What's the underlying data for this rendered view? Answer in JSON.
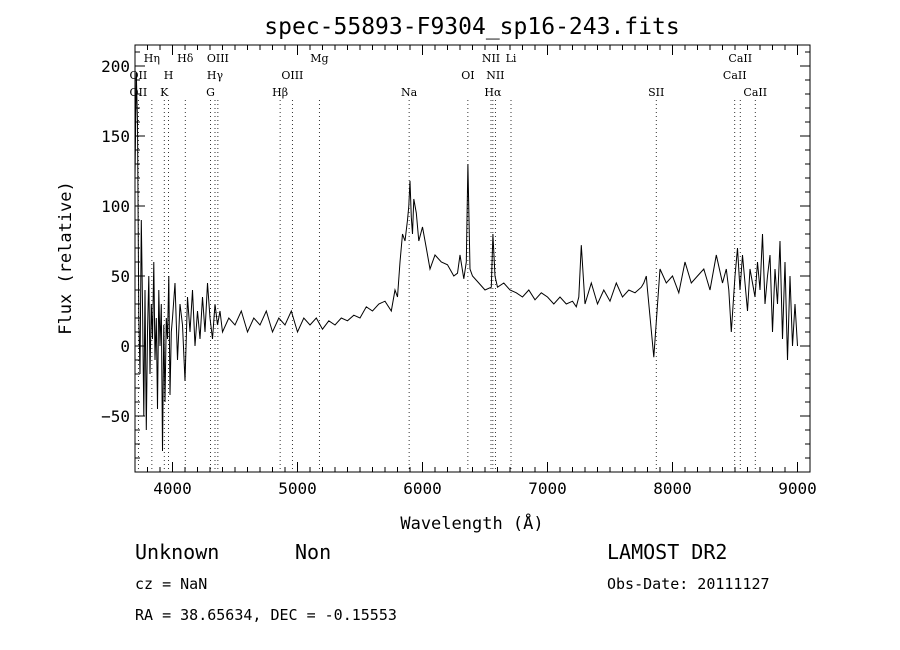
{
  "chart_data": {
    "type": "line",
    "title": "spec-55893-F9304_sp16-243.fits",
    "xlabel": "Wavelength (Å)",
    "ylabel": "Flux (relative)",
    "xlim": [
      3700,
      9100
    ],
    "ylim": [
      -90,
      215
    ],
    "xticks": [
      4000,
      5000,
      6000,
      7000,
      8000,
      9000
    ],
    "yticks": [
      -50,
      0,
      50,
      100,
      150,
      200
    ],
    "grid": false,
    "series": [
      {
        "x": [
          3700,
          3710,
          3720,
          3730,
          3740,
          3750,
          3760,
          3770,
          3780,
          3790,
          3800,
          3810,
          3820,
          3830,
          3840,
          3850,
          3860,
          3870,
          3880,
          3890,
          3900,
          3910,
          3920,
          3930,
          3940,
          3950,
          3960,
          3970,
          3980,
          3990,
          4000,
          4020,
          4040,
          4060,
          4080,
          4100,
          4120,
          4140,
          4160,
          4180,
          4200,
          4220,
          4240,
          4260,
          4280,
          4300,
          4320,
          4340,
          4360,
          4380,
          4400,
          4450,
          4500,
          4550,
          4600,
          4650,
          4700,
          4750,
          4800,
          4850,
          4900,
          4950,
          5000,
          5050,
          5100,
          5150,
          5200,
          5250,
          5300,
          5350,
          5400,
          5450,
          5500,
          5550,
          5600,
          5650,
          5700,
          5750,
          5780,
          5800,
          5820,
          5840,
          5860,
          5880,
          5890,
          5900,
          5910,
          5920,
          5930,
          5950,
          5970,
          6000,
          6030,
          6060,
          6100,
          6150,
          6200,
          6250,
          6280,
          6300,
          6330,
          6350,
          6363,
          6380,
          6400,
          6450,
          6500,
          6550,
          6563,
          6580,
          6600,
          6650,
          6700,
          6750,
          6800,
          6850,
          6900,
          6950,
          7000,
          7050,
          7100,
          7150,
          7200,
          7230,
          7250,
          7270,
          7300,
          7350,
          7400,
          7450,
          7500,
          7550,
          7600,
          7650,
          7700,
          7750,
          7770,
          7790,
          7800,
          7850,
          7900,
          7950,
          8000,
          8050,
          8100,
          8150,
          8200,
          8250,
          8300,
          8350,
          8400,
          8430,
          8450,
          8470,
          8500,
          8520,
          8540,
          8560,
          8600,
          8620,
          8640,
          8660,
          8680,
          8700,
          8720,
          8740,
          8760,
          8780,
          8800,
          8820,
          8840,
          8860,
          8880,
          8900,
          8920,
          8940,
          8960,
          8980,
          9000
        ],
        "y": [
          120,
          195,
          160,
          20,
          -20,
          90,
          30,
          -50,
          40,
          -60,
          10,
          50,
          -20,
          30,
          5,
          60,
          -10,
          20,
          -45,
          40,
          0,
          30,
          -75,
          15,
          -40,
          20,
          5,
          50,
          -35,
          10,
          20,
          45,
          -10,
          30,
          15,
          -25,
          35,
          10,
          40,
          0,
          25,
          5,
          35,
          10,
          45,
          20,
          5,
          30,
          15,
          25,
          10,
          20,
          15,
          25,
          10,
          20,
          15,
          25,
          10,
          20,
          15,
          25,
          10,
          20,
          15,
          20,
          12,
          18,
          15,
          20,
          18,
          22,
          20,
          28,
          25,
          30,
          32,
          25,
          40,
          35,
          60,
          80,
          75,
          90,
          100,
          118,
          92,
          80,
          105,
          95,
          75,
          85,
          70,
          55,
          65,
          60,
          58,
          50,
          52,
          65,
          48,
          60,
          130,
          55,
          50,
          45,
          40,
          42,
          80,
          50,
          42,
          45,
          40,
          38,
          35,
          40,
          33,
          38,
          35,
          30,
          35,
          30,
          32,
          28,
          35,
          72,
          30,
          45,
          30,
          40,
          32,
          45,
          35,
          40,
          38,
          42,
          45,
          50,
          40,
          -8,
          55,
          45,
          50,
          38,
          60,
          45,
          50,
          55,
          40,
          65,
          45,
          55,
          40,
          10,
          50,
          70,
          40,
          65,
          25,
          55,
          45,
          35,
          60,
          40,
          80,
          30,
          50,
          65,
          10,
          55,
          30,
          75,
          5,
          60,
          -10,
          50,
          0,
          30,
          0
        ]
      }
    ],
    "spectral_lines": [
      {
        "label": "OII",
        "x": 3727,
        "row": 1
      },
      {
        "label": "OII",
        "x": 3727,
        "row": 3
      },
      {
        "label": "Hη",
        "x": 3835,
        "row": 0
      },
      {
        "label": "H",
        "x": 3968,
        "row": 1
      },
      {
        "label": "K",
        "x": 3934,
        "row": 3
      },
      {
        "label": "Hδ",
        "x": 4102,
        "row": 0
      },
      {
        "label": "OIII",
        "x": 4363,
        "row": 0
      },
      {
        "label": "Hγ",
        "x": 4340,
        "row": 1
      },
      {
        "label": "G",
        "x": 4304,
        "row": 3
      },
      {
        "label": "Hβ",
        "x": 4861,
        "row": 3
      },
      {
        "label": "OIII",
        "x": 4959,
        "row": 1
      },
      {
        "label": "Mg",
        "x": 5175,
        "row": 0
      },
      {
        "label": "Na",
        "x": 5893,
        "row": 3
      },
      {
        "label": "OI",
        "x": 6363,
        "row": 1
      },
      {
        "label": "NII",
        "x": 6548,
        "row": 0
      },
      {
        "label": "NII",
        "x": 6583,
        "row": 1
      },
      {
        "label": "Li",
        "x": 6708,
        "row": 0
      },
      {
        "label": "Hα",
        "x": 6563,
        "row": 3
      },
      {
        "label": "SII",
        "x": 7870,
        "row": 3
      },
      {
        "label": "CaII",
        "x": 8542,
        "row": 0
      },
      {
        "label": "CaII",
        "x": 8498,
        "row": 1
      },
      {
        "label": "CaII",
        "x": 8662,
        "row": 3
      }
    ]
  },
  "info": {
    "class_label": "Unknown",
    "subclass_label": "Non",
    "survey": "LAMOST DR2",
    "cz": "cz = NaN",
    "obs_date": "Obs-Date: 20111127",
    "coords": "RA =  38.65634, DEC =  -0.15553"
  }
}
